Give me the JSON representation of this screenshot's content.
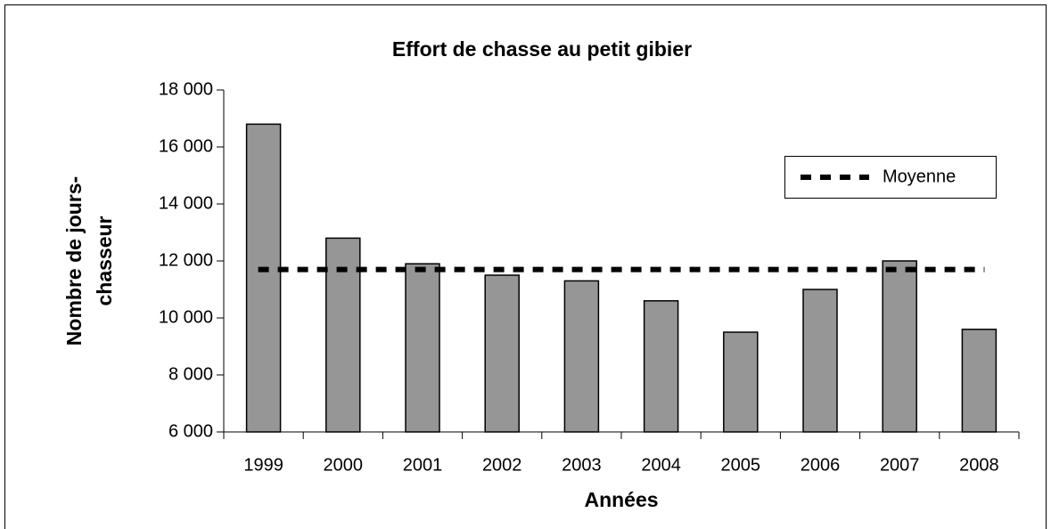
{
  "chart_data": {
    "type": "bar",
    "title": "Effort de chasse au petit gibier",
    "x_label": "Années",
    "y_label": [
      "Nombre de jours-",
      "chasseur"
    ],
    "categories": [
      "1999",
      "2000",
      "2001",
      "2002",
      "2003",
      "2004",
      "2005",
      "2006",
      "2007",
      "2008"
    ],
    "values": [
      16800,
      12800,
      11900,
      11500,
      11300,
      10600,
      9500,
      11000,
      12000,
      9600
    ],
    "color": "#969696",
    "mean": {
      "name": "Moyenne",
      "value": 11700,
      "color": "#000000"
    },
    "ylim": [
      6000,
      18000
    ],
    "yticks": [
      {
        "value": 6000,
        "label": "6 000"
      },
      {
        "value": 8000,
        "label": "8 000"
      },
      {
        "value": 10000,
        "label": "10 000"
      },
      {
        "value": 12000,
        "label": "12 000"
      },
      {
        "value": 14000,
        "label": "14 000"
      },
      {
        "value": 16000,
        "label": "16 000"
      },
      {
        "value": 18000,
        "label": "18 000"
      }
    ],
    "grid": false
  }
}
